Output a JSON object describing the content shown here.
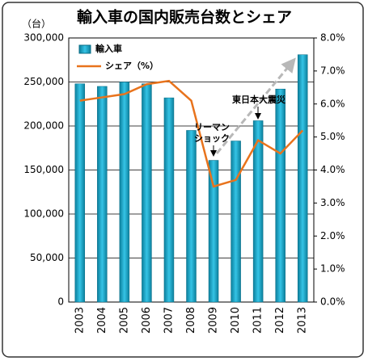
{
  "chart_data": {
    "type": "bar",
    "title": "輸入車の国内販売台数とシェア",
    "y_label": "（台）",
    "categories": [
      "2003",
      "2004",
      "2005",
      "2006",
      "2007",
      "2008",
      "2009",
      "2010",
      "2011",
      "2012",
      "2013"
    ],
    "series": [
      {
        "name": "輸入車",
        "color": "#1aa3c8",
        "values": [
          248000,
          245000,
          250000,
          248000,
          232000,
          195000,
          161000,
          183000,
          206000,
          242000,
          281000
        ]
      },
      {
        "name": "シェア（%）",
        "type": "line",
        "axis": "y2",
        "color": "#e8731c",
        "values": [
          6.1,
          6.2,
          6.3,
          6.6,
          6.7,
          6.1,
          3.5,
          3.7,
          4.9,
          4.5,
          5.2
        ]
      }
    ],
    "ylim": [
      0,
      300000
    ],
    "yticks": [
      0,
      {
        "value": 50000,
        "label": "50,000"
      },
      {
        "value": 100000,
        "label": "100,000"
      },
      {
        "value": 150000,
        "label": "150,000"
      },
      {
        "value": 200000,
        "label": "200,000"
      },
      {
        "value": 250000,
        "label": "250,000"
      },
      {
        "value": 300000,
        "label": "300,000"
      }
    ],
    "y2lim": [
      0,
      8
    ],
    "y2ticks": [
      {
        "value": 0,
        "label": "0.0%"
      },
      {
        "value": 1,
        "label": "1.0%"
      },
      {
        "value": 2,
        "label": "2.0%"
      },
      {
        "value": 3,
        "label": "3.0%"
      },
      {
        "value": 4,
        "label": "4.0%"
      },
      {
        "value": 5,
        "label": "5.0%"
      },
      {
        "value": 6,
        "label": "6.0%"
      },
      {
        "value": 7,
        "label": "7.0%"
      },
      {
        "value": 8,
        "label": "8.0%"
      }
    ],
    "grid": true,
    "legend": "top-left",
    "annotations": [
      {
        "lines": [
          "リーマン",
          "ショック"
        ]
      },
      {
        "lines": [
          "東日本大震災"
        ]
      }
    ]
  }
}
